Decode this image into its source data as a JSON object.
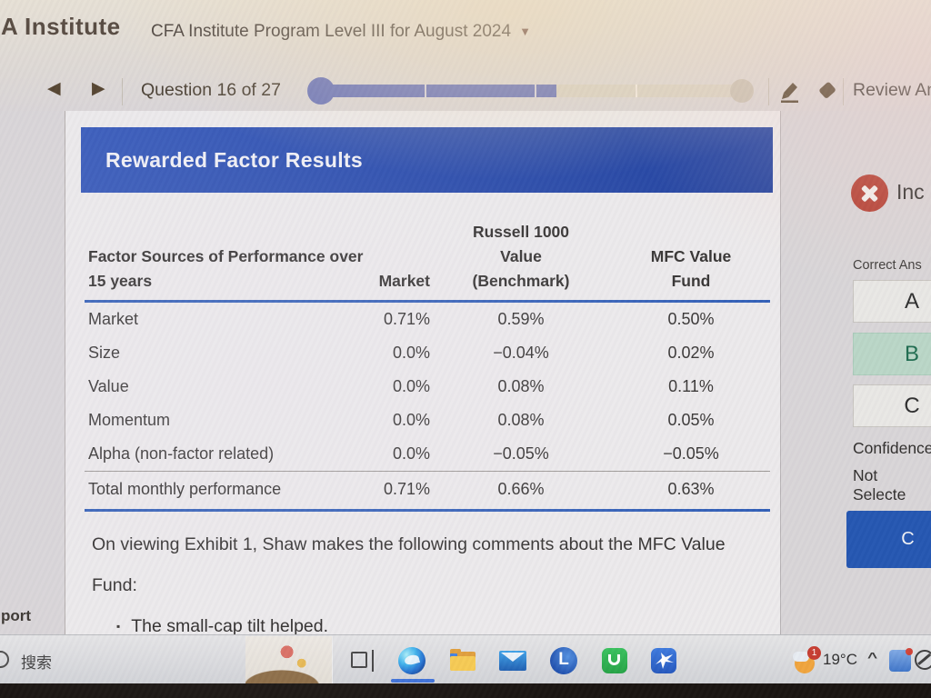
{
  "window": {
    "logo_text": "A Institute",
    "app_title": "CFA Institute Program Level III for August 2024",
    "dropdown_glyph": "▼"
  },
  "navbar": {
    "back_glyph": "◀",
    "forward_glyph": "▶",
    "question_counter": "Question 16 of 27",
    "review_label": "Review An",
    "progress": {
      "current": 16,
      "total": 27,
      "fill_percent": 56,
      "ticks_percent": [
        26,
        51,
        74
      ]
    }
  },
  "exhibit": {
    "title": "Rewarded Factor Results",
    "table": {
      "col_headers": {
        "factor": "Factor Sources of Performance over 15 years",
        "market": "Market",
        "benchmark": "Russell 1000 Value (Benchmark)",
        "fund": "MFC Value Fund"
      },
      "rows": [
        {
          "label": "Market",
          "market": "0.71%",
          "benchmark": "0.59%",
          "fund": "0.50%"
        },
        {
          "label": "Size",
          "market": "0.0%",
          "benchmark": "−0.04%",
          "fund": "0.02%"
        },
        {
          "label": "Value",
          "market": "0.0%",
          "benchmark": "0.08%",
          "fund": "0.11%"
        },
        {
          "label": "Momentum",
          "market": "0.0%",
          "benchmark": "0.08%",
          "fund": "0.05%"
        },
        {
          "label": "Alpha (non-factor related)",
          "market": "0.0%",
          "benchmark": "−0.05%",
          "fund": "−0.05%"
        }
      ],
      "total_row": {
        "label": "Total monthly performance",
        "market": "0.71%",
        "benchmark": "0.66%",
        "fund": "0.63%"
      }
    },
    "paragraph": "On viewing Exhibit 1, Shaw makes the following comments about the MFC Value Fund:",
    "bullet_glyph": "▪",
    "bullet_text": "The small-cap tilt helped."
  },
  "sidebar": {
    "result_label": "Inc",
    "correct_answer_label": "Correct Ans",
    "options": [
      {
        "label": "A",
        "state": "default"
      },
      {
        "label": "B",
        "state": "correct"
      },
      {
        "label": "C",
        "state": "default"
      }
    ],
    "confidence_label": "Confidence",
    "confidence_value": "Not Selecte",
    "action_button_label": "C"
  },
  "left_edge_label": "port",
  "taskbar": {
    "search_label": "搜索",
    "temperature": "19°C",
    "tray_chevron": "^",
    "weather_badge": "1"
  },
  "colors": {
    "accent_blue": "#2b52b0",
    "table_line_blue": "#2b5ab5",
    "correct_bg": "#b9d6c6",
    "correct_text": "#1d6b4e",
    "incorrect_red": "#b2392c",
    "button_blue": "#2154b0",
    "progress_fill": "#6973b8"
  }
}
